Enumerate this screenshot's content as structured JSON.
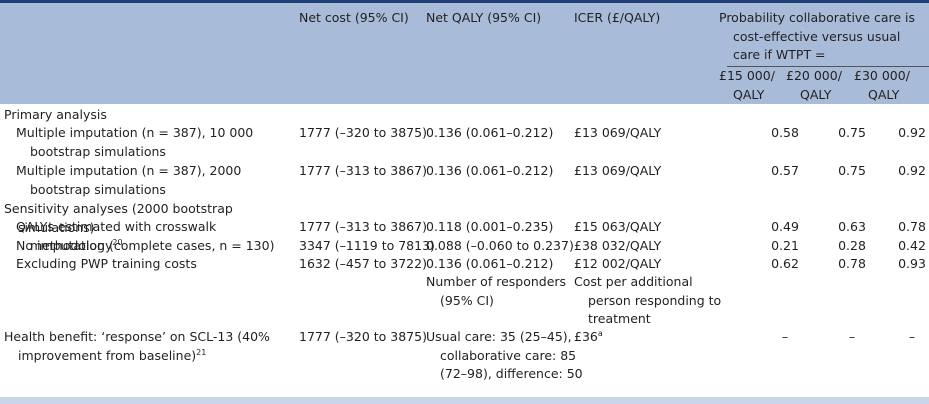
{
  "header": {
    "columns": [
      "Net cost (95% CI)",
      "Net QALY (95% CI)",
      "ICER (£/QALY)",
      "Probability collaborative care is cost-effective versus usual care if WTPT ="
    ],
    "subcolumns": [
      "£15 000/ QALY",
      "£20 000/ QALY",
      "£30 000/ QALY"
    ]
  },
  "rows": [
    {
      "label": "Primary analysis"
    },
    {
      "label": "Multiple imputation (n = 387), 10 000 bootstrap simulations",
      "net_cost": "1777 (–320 to 3875)",
      "net_qaly": "0.136 (0.061–0.212)",
      "icer": "£13 069/QALY",
      "probabilities": [
        "0.58",
        "0.75",
        "0.92"
      ]
    },
    {
      "label": "Multiple imputation (n = 387), 2000 bootstrap simulations",
      "net_cost": "1777 (–313 to 3867)",
      "net_qaly": "0.136 (0.061–0.212)",
      "icer": "£13 069/QALY",
      "probabilities": [
        "0.57",
        "0.75",
        "0.92"
      ]
    },
    {
      "label": "Sensitivity analyses (2000 bootstrap simulations)"
    },
    {
      "label": "QALYs estimated with crosswalk methodology",
      "label_note": "20",
      "net_cost": "1777 (–313 to 3867)",
      "net_qaly": "0.118 (0.001–0.235)",
      "icer": "£15 063/QALY",
      "probabilities": [
        "0.49",
        "0.63",
        "0.78"
      ]
    },
    {
      "label": "No imputation (complete cases, n = 130)",
      "net_cost": "3347 (–1119 to 7813)",
      "net_qaly": "0.088 (–0.060 to 0.237)",
      "icer": "£38 032/QALY",
      "probabilities": [
        "0.21",
        "0.28",
        "0.42"
      ]
    },
    {
      "label": "Excluding PWP training costs",
      "net_cost": "1632 (–457 to 3722)",
      "net_qaly": "0.136 (0.061–0.212)",
      "icer": "£12 002/QALY",
      "probabilities": [
        "0.62",
        "0.78",
        "0.93"
      ]
    },
    {
      "net_qaly": "Number of responders (95% CI)",
      "icer": "Cost per additional person responding to treatment"
    },
    {
      "label": "Health benefit: ‘response’ on SCL-13 (40% improvement from baseline)",
      "label_note": "21",
      "net_cost": "1777 (–320 to 3875)",
      "net_qaly": "Usual care: 35 (25–45), collaborative care: 85 (72–98), difference: 50",
      "icer": "£36",
      "icer_note": "a",
      "probabilities": [
        "–",
        "–",
        "–"
      ]
    }
  ]
}
